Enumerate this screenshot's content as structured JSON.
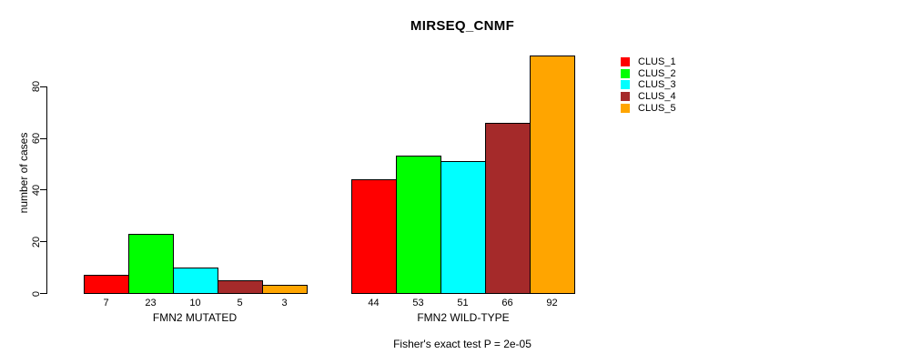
{
  "title": "MIRSEQ_CNMF",
  "y_axis": {
    "label": "number of cases",
    "ticks": [
      0,
      20,
      40,
      60,
      80
    ]
  },
  "groups": [
    {
      "label": "FMN2 MUTATED"
    },
    {
      "label": "FMN2 WILD-TYPE"
    }
  ],
  "footer_annotation": "Fisher's exact test P = 2e-05",
  "chart_data": {
    "type": "bar",
    "title": "MIRSEQ_CNMF",
    "xlabel": "",
    "ylabel": "number of cases",
    "categories": [
      "FMN2 MUTATED",
      "FMN2 WILD-TYPE"
    ],
    "series": [
      {
        "name": "CLUS_1",
        "color": "#ff0000",
        "values": [
          7,
          44
        ]
      },
      {
        "name": "CLUS_2",
        "color": "#00ff00",
        "values": [
          23,
          53
        ]
      },
      {
        "name": "CLUS_3",
        "color": "#00ffff",
        "values": [
          10,
          51
        ]
      },
      {
        "name": "CLUS_4",
        "color": "#a52a2a",
        "values": [
          5,
          66
        ]
      },
      {
        "name": "CLUS_5",
        "color": "#ffa500",
        "values": [
          3,
          92
        ]
      }
    ],
    "bar_value_labels": [
      [
        "7",
        "23",
        "10",
        "5",
        "3"
      ],
      [
        "44",
        "53",
        "51",
        "66",
        "92"
      ]
    ],
    "yticks": [
      0,
      20,
      40,
      60,
      80
    ],
    "ylim": [
      0,
      93
    ],
    "grid": false,
    "legend_position": "right-outside",
    "annotation": "Fisher's exact test P = 2e-05",
    "bar_border_color": "#000000",
    "background_color": "#ffffff"
  }
}
